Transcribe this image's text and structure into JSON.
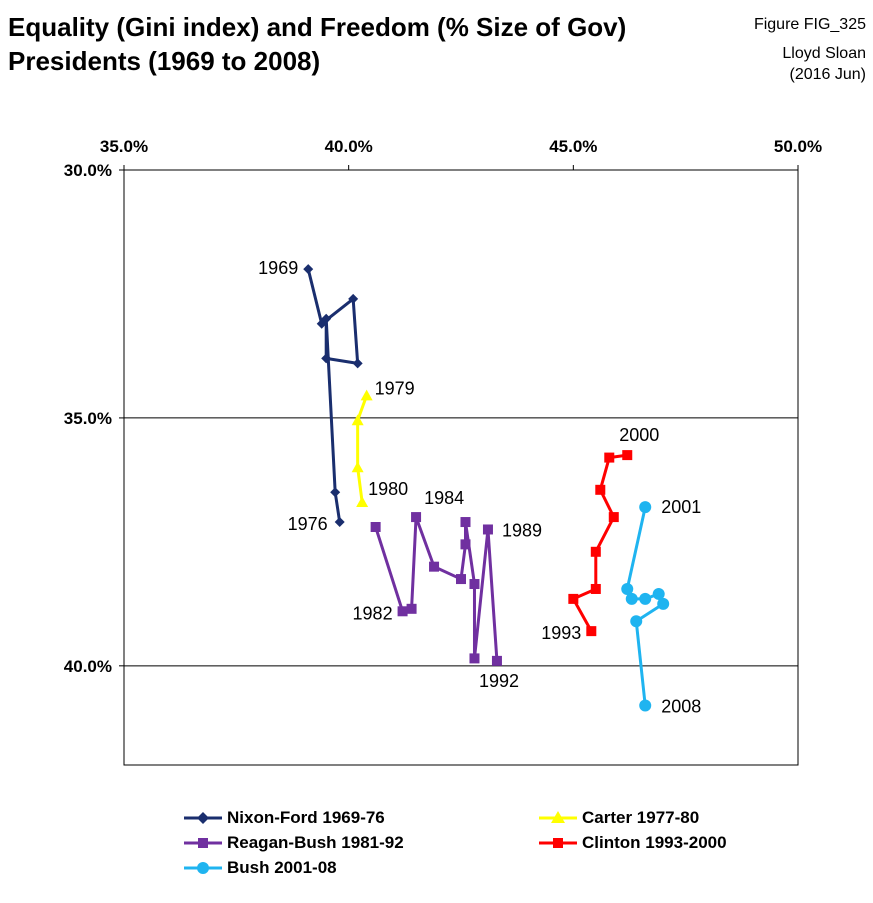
{
  "header": {
    "title_line1": "Equality (Gini index) and Freedom (% Size of Gov)",
    "title_line2": "Presidents (1969 to 2008)",
    "figure_id": "Figure FIG_325",
    "author": "Lloyd Sloan",
    "date": "(2016 Jun)"
  },
  "chart_data": {
    "type": "scatter",
    "title": "Equality (Gini index) and Freedom (% Size of Gov) Presidents (1969 to 2008)",
    "xlabel": "",
    "ylabel": "",
    "xlim": [
      0.35,
      0.5
    ],
    "ylim": [
      0.3,
      0.42
    ],
    "x_axis_position": "top",
    "y_axis_inverted": true,
    "x_ticks": [
      "35.0%",
      "40.0%",
      "45.0%",
      "50.0%"
    ],
    "y_ticks": [
      "30.0%",
      "35.0%",
      "40.0%"
    ],
    "grid": "horizontal",
    "legend_placement": "bottom",
    "series": [
      {
        "name": "Nixon-Ford 1969-76",
        "color": "#1a2e6e",
        "marker": "diamond",
        "points": [
          [
            0.391,
            0.32
          ],
          [
            0.394,
            0.331
          ],
          [
            0.401,
            0.326
          ],
          [
            0.402,
            0.339
          ],
          [
            0.395,
            0.338
          ],
          [
            0.395,
            0.33
          ],
          [
            0.397,
            0.365
          ],
          [
            0.398,
            0.371
          ]
        ],
        "labels": [
          "1969",
          "",
          "",
          "",
          "",
          "",
          "",
          "1976"
        ]
      },
      {
        "name": "Carter 1977-80",
        "color": "#ffff00",
        "marker": "triangle",
        "points": [
          [
            0.404,
            0.3455
          ],
          [
            0.402,
            0.3505
          ],
          [
            0.402,
            0.36
          ],
          [
            0.403,
            0.367
          ]
        ],
        "labels": [
          "1979",
          "",
          "",
          "1980"
        ]
      },
      {
        "name": "Reagan-Bush 1981-92",
        "color": "#7030a0",
        "marker": "square",
        "points": [
          [
            0.406,
            0.372
          ],
          [
            0.412,
            0.389
          ],
          [
            0.414,
            0.3885
          ],
          [
            0.415,
            0.37
          ],
          [
            0.419,
            0.38
          ],
          [
            0.425,
            0.3825
          ],
          [
            0.426,
            0.3755
          ],
          [
            0.426,
            0.371
          ],
          [
            0.428,
            0.3835
          ],
          [
            0.428,
            0.3985
          ],
          [
            0.431,
            0.3725
          ],
          [
            0.433,
            0.399
          ]
        ],
        "labels": [
          "",
          "1982",
          "",
          "1984",
          "",
          "",
          "",
          "",
          "",
          "",
          "1989",
          "1992"
        ]
      },
      {
        "name": "Clinton 1993-2000",
        "color": "#ff0000",
        "marker": "square",
        "points": [
          [
            0.454,
            0.393
          ],
          [
            0.45,
            0.3865
          ],
          [
            0.455,
            0.3845
          ],
          [
            0.455,
            0.377
          ],
          [
            0.459,
            0.37
          ],
          [
            0.456,
            0.3645
          ],
          [
            0.458,
            0.358
          ],
          [
            0.462,
            0.3575
          ]
        ],
        "labels": [
          "1993",
          "",
          "",
          "",
          "",
          "",
          "",
          "2000"
        ]
      },
      {
        "name": "Bush 2001-08",
        "color": "#1fb4f0",
        "marker": "circle",
        "points": [
          [
            0.466,
            0.368
          ],
          [
            0.462,
            0.3845
          ],
          [
            0.463,
            0.3865
          ],
          [
            0.466,
            0.3865
          ],
          [
            0.469,
            0.3855
          ],
          [
            0.47,
            0.3875
          ],
          [
            0.464,
            0.391
          ],
          [
            0.466,
            0.408
          ]
        ],
        "labels": [
          "2001",
          "",
          "",
          "",
          "",
          "",
          "",
          "2008"
        ]
      }
    ]
  }
}
